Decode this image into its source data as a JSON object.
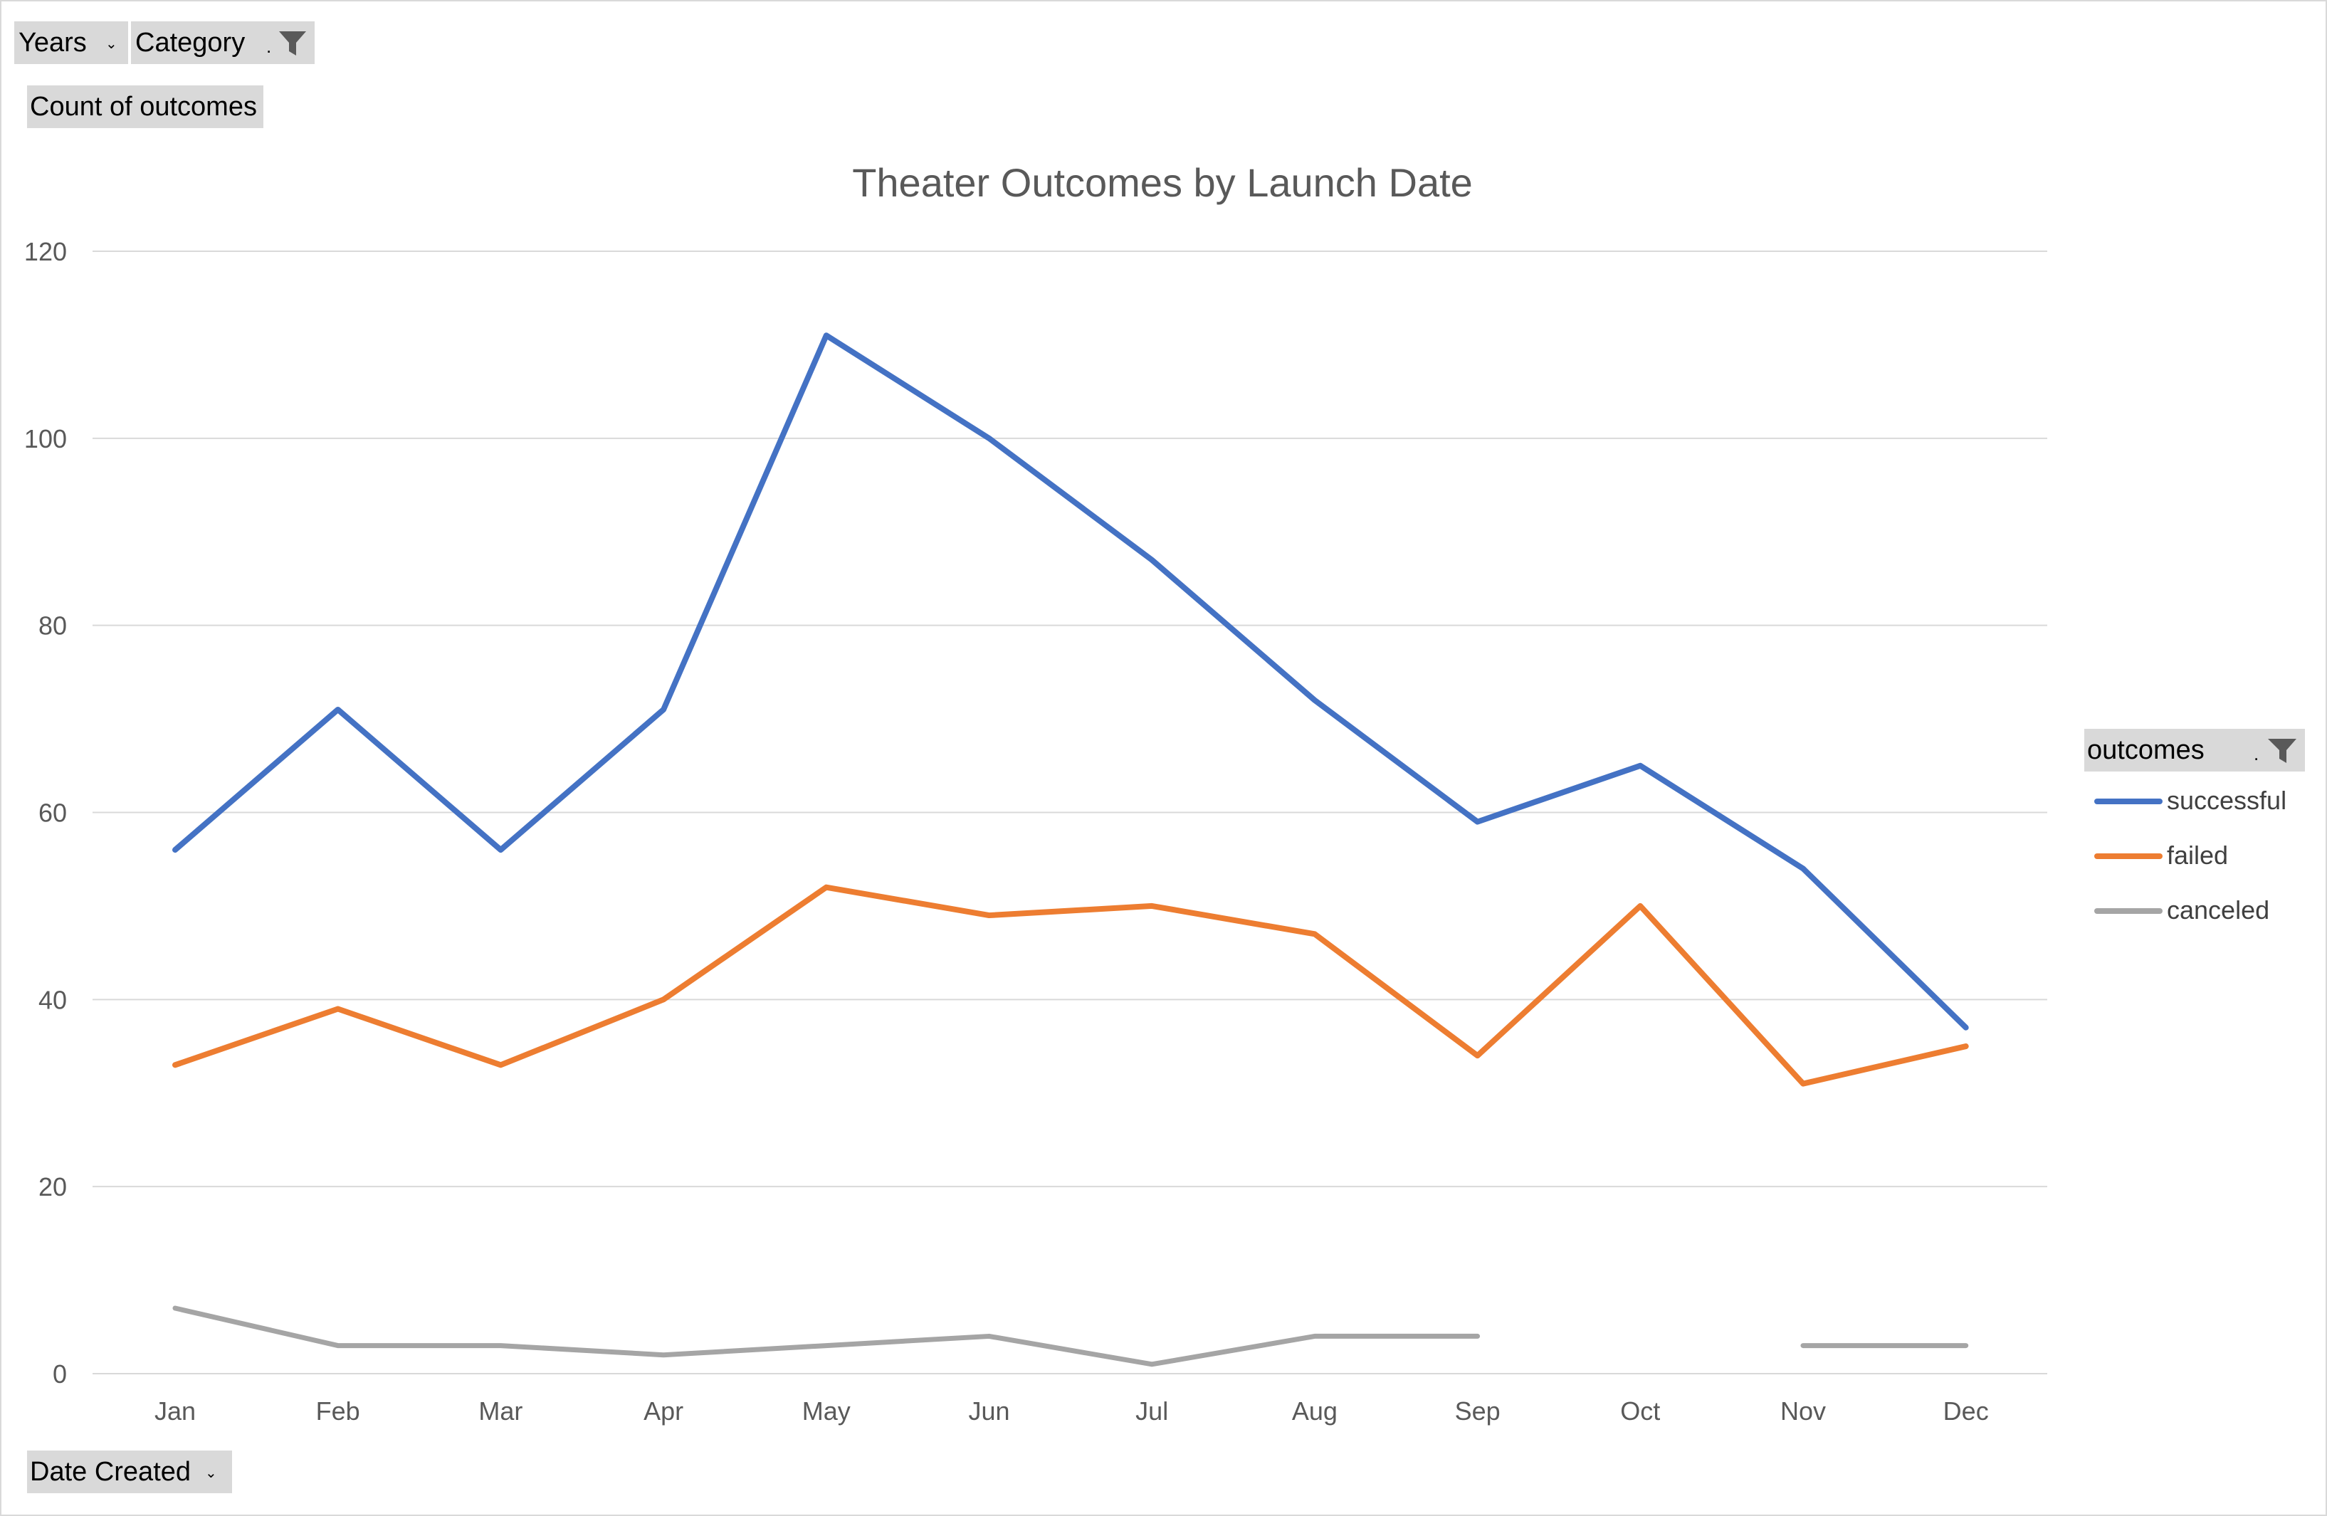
{
  "pivot_fields": {
    "years_label": "Years",
    "category_label": "Category",
    "value_field_label": "Count of outcomes",
    "axis_field_label": "Date Created",
    "legend_field_label": "outcomes"
  },
  "colors": {
    "successful": "#4472c4",
    "failed": "#ed7d31",
    "canceled": "#a5a5a5",
    "gridline": "#d9d9d9",
    "field_button": "#d9d9d9"
  },
  "chart_data": {
    "type": "line",
    "title": "Theater Outcomes by Launch Date",
    "xlabel": "",
    "ylabel": "",
    "categories": [
      "Jan",
      "Feb",
      "Mar",
      "Apr",
      "May",
      "Jun",
      "Jul",
      "Aug",
      "Sep",
      "Oct",
      "Nov",
      "Dec"
    ],
    "ylim": [
      0,
      120
    ],
    "yticks": [
      0,
      20,
      40,
      60,
      80,
      100,
      120
    ],
    "grid": true,
    "legend_position": "right",
    "series": [
      {
        "name": "successful",
        "values": [
          56,
          71,
          56,
          71,
          111,
          100,
          87,
          72,
          59,
          65,
          54,
          37
        ]
      },
      {
        "name": "failed",
        "values": [
          33,
          39,
          33,
          40,
          52,
          49,
          50,
          47,
          34,
          50,
          31,
          35
        ]
      },
      {
        "name": "canceled",
        "values": [
          7,
          3,
          3,
          2,
          3,
          4,
          1,
          4,
          4,
          null,
          3,
          3
        ]
      }
    ]
  }
}
